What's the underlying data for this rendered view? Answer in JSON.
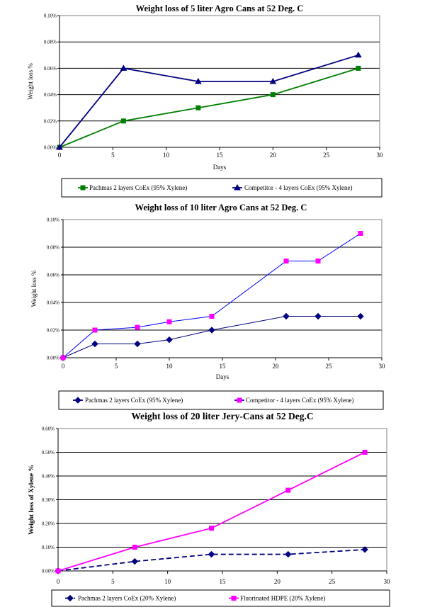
{
  "chart_data": [
    {
      "type": "line",
      "title": "Weight loss of 5 liter Agro Cans at 52 Deg. C",
      "xlabel": "Days",
      "ylabel": "Weight loss %",
      "xlim": [
        0,
        30
      ],
      "ylim": [
        0,
        0.1
      ],
      "x_ticks": [
        "0",
        "5",
        "10",
        "15",
        "20",
        "25",
        "30"
      ],
      "y_ticks": [
        "0.00%",
        "0.02%",
        "0.04%",
        "0.06%",
        "0.08%",
        "0.10%"
      ],
      "grid": "horizontal",
      "legend_position": "bottom",
      "series": [
        {
          "name": "Pachmas 2 layers CoEx (95% Xylene)",
          "color": "#008000",
          "marker": "square",
          "x": [
            0,
            6,
            13,
            20,
            28
          ],
          "values": [
            0.0,
            0.02,
            0.03,
            0.04,
            0.06
          ]
        },
        {
          "name": "Competitor - 4 layers CoEx (95% Xylene)",
          "color": "#000080",
          "marker": "triangle",
          "x": [
            0,
            6,
            13,
            20,
            28
          ],
          "values": [
            0.0,
            0.06,
            0.05,
            0.05,
            0.07
          ]
        }
      ]
    },
    {
      "type": "line",
      "title": "Weight loss of 10 liter Agro Cans at 52 Deg. C",
      "xlabel": "Days",
      "ylabel": "Weight loss %",
      "xlim": [
        0,
        30
      ],
      "ylim": [
        0,
        0.1
      ],
      "x_ticks": [
        "0",
        "5",
        "10",
        "15",
        "20",
        "25",
        "30"
      ],
      "y_ticks": [
        "0.00%",
        "0.02%",
        "0.04%",
        "0.06%",
        "0.08%",
        "0.10%"
      ],
      "grid": "horizontal",
      "legend_position": "bottom",
      "series": [
        {
          "name": "Pachmas 2 layers CoEx (95% Xylene)",
          "color": "#000080",
          "marker": "diamond",
          "x": [
            0,
            3,
            7,
            10,
            14,
            21,
            24,
            28
          ],
          "values": [
            0.0,
            0.01,
            0.01,
            0.013,
            0.02,
            0.03,
            0.03,
            0.03
          ]
        },
        {
          "name": "Competitor - 4 layers CoEx (95% Xylene)",
          "color": "#FF00FF",
          "line_color": "#0000FF",
          "marker": "square",
          "x": [
            0,
            3,
            7,
            10,
            14,
            21,
            24,
            28
          ],
          "values": [
            0.0,
            0.02,
            0.022,
            0.026,
            0.03,
            0.07,
            0.07,
            0.09
          ]
        }
      ]
    },
    {
      "type": "line",
      "title": "Weight loss of 20 liter Jery-Cans at 52 Deg.C",
      "xlabel": "",
      "ylabel": "Weight loss of Xylene %",
      "xlim": [
        0,
        30
      ],
      "ylim": [
        0,
        0.6
      ],
      "x_ticks": [
        "0",
        "5",
        "10",
        "15",
        "20",
        "25",
        "30"
      ],
      "y_ticks": [
        "0.00%",
        "0.10%",
        "0.20%",
        "0.30%",
        "0.40%",
        "0.50%",
        "0.60%"
      ],
      "grid": "horizontal",
      "legend_position": "bottom",
      "series": [
        {
          "name": "Pachmas 2 layers CoEx (20% Xylene)",
          "color": "#000080",
          "marker": "diamond",
          "dash": true,
          "x": [
            0,
            7,
            14,
            21,
            28
          ],
          "values": [
            0.0,
            0.04,
            0.07,
            0.07,
            0.09
          ]
        },
        {
          "name": "Fluorinated HDPE (20% Xylene)",
          "color": "#FF00FF",
          "marker": "square",
          "x": [
            0,
            7,
            14,
            21,
            28
          ],
          "values": [
            0.0,
            0.1,
            0.18,
            0.34,
            0.5
          ]
        }
      ]
    }
  ]
}
